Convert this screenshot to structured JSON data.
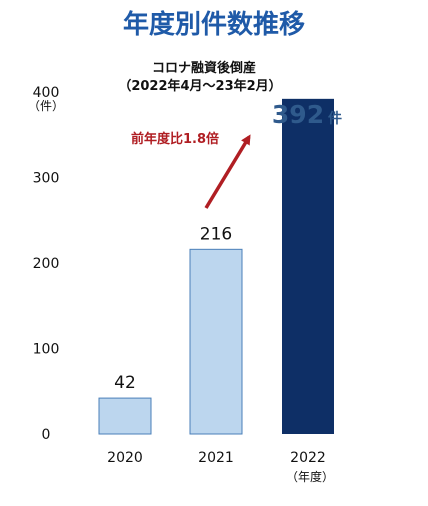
{
  "chart_data": {
    "type": "bar",
    "title": "年度別件数推移",
    "categories": [
      "2020",
      "2021",
      "2022"
    ],
    "values": [
      42,
      216,
      392
    ],
    "data_labels": [
      "42",
      "216",
      "392"
    ],
    "highlight_unit": "件",
    "ylim": [
      0,
      400
    ],
    "yticks": [
      "0",
      "100",
      "200",
      "300",
      "400"
    ],
    "yunit": "（件）",
    "xunit": "（年度）",
    "grid": false,
    "annotation": {
      "line1": "コロナ融資後倒産",
      "line2": "（2022年4月～23年2月）",
      "growth": "前年度比1.8倍"
    },
    "colors": {
      "title": "#1f5aa8",
      "bar_light": "#bcd6ee",
      "bar_light_border": "#4a7fb8",
      "bar_dark": "#0e2f66",
      "highlight_text": "#2f5a8c",
      "arrow": "#b01e23",
      "text": "#111111"
    }
  }
}
